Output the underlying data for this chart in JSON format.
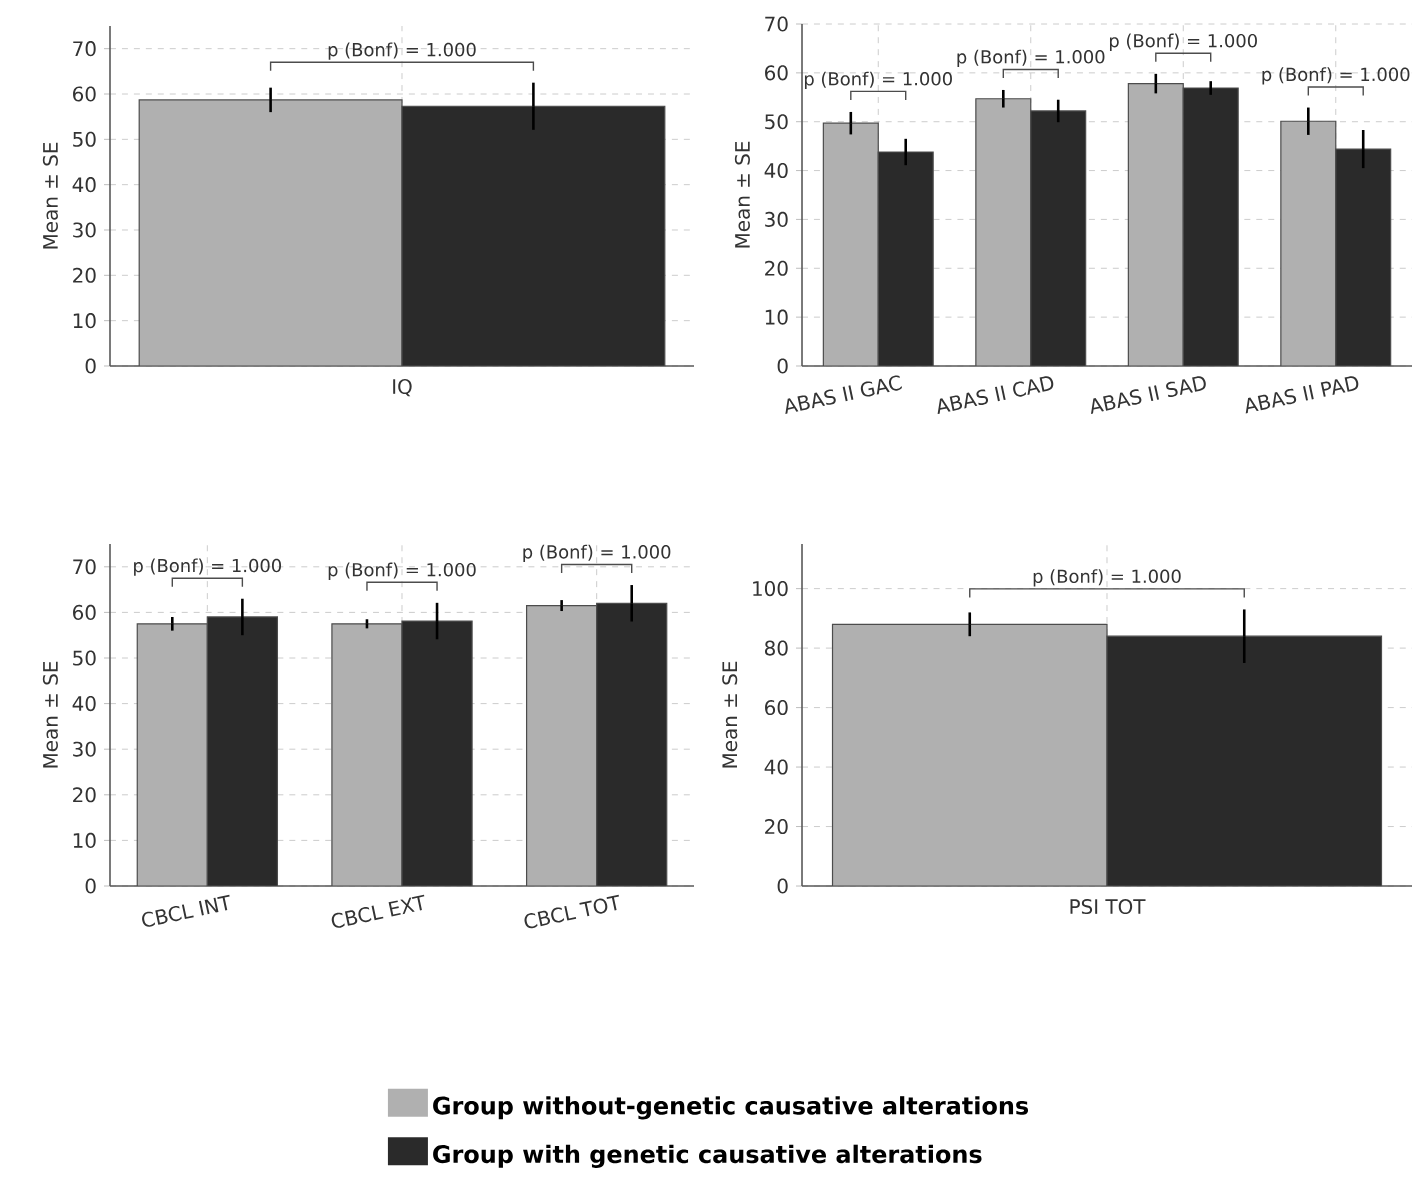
{
  "chart_data": [
    {
      "type": "bar",
      "categories": [
        "IQ"
      ],
      "ylabel": "Mean ± SE",
      "ylim": [
        0,
        75
      ],
      "yticks": [
        0,
        10,
        20,
        30,
        40,
        50,
        60,
        70
      ],
      "grid": true,
      "series": [
        {
          "color": "#b0b0b0",
          "values": [
            58.7
          ],
          "errors": [
            2.7
          ]
        },
        {
          "color": "#2a2a2a",
          "values": [
            57.3
          ],
          "errors": [
            5.2
          ]
        }
      ],
      "annotations": [
        "p (Bonf) = 1.000"
      ]
    },
    {
      "type": "bar",
      "categories": [
        "ABAS II GAC",
        "ABAS II CAD",
        "ABAS II SAD",
        "ABAS II PAD"
      ],
      "ylabel": "Mean ± SE",
      "ylim": [
        0,
        70
      ],
      "yticks": [
        0,
        10,
        20,
        30,
        40,
        50,
        60,
        70
      ],
      "grid": true,
      "series": [
        {
          "color": "#b0b0b0",
          "values": [
            49.7,
            54.7,
            57.8,
            50.1
          ],
          "errors": [
            2.3,
            1.8,
            2.0,
            2.8
          ]
        },
        {
          "color": "#2a2a2a",
          "values": [
            43.8,
            52.2,
            56.9,
            44.4
          ],
          "errors": [
            2.7,
            2.3,
            1.4,
            3.9
          ]
        }
      ],
      "annotations": [
        "p (Bonf) = 1.000",
        "p (Bonf) = 1.000",
        "p (Bonf) = 1.000",
        "p (Bonf) = 1.000"
      ]
    },
    {
      "type": "bar",
      "categories": [
        "CBCL INT",
        "CBCL EXT",
        "CBCL TOT"
      ],
      "ylabel": "Mean ± SE",
      "ylim": [
        0,
        75
      ],
      "yticks": [
        0,
        10,
        20,
        30,
        40,
        50,
        60,
        70
      ],
      "grid": true,
      "series": [
        {
          "color": "#b0b0b0",
          "values": [
            57.5,
            57.5,
            61.5
          ],
          "errors": [
            1.5,
            1.0,
            1.2
          ]
        },
        {
          "color": "#2a2a2a",
          "values": [
            59.0,
            58.1,
            62.0
          ],
          "errors": [
            4.0,
            4.0,
            4.0
          ]
        }
      ],
      "annotations": [
        "p (Bonf) = 1.000",
        "p (Bonf) = 1.000",
        "p (Bonf) = 1.000"
      ]
    },
    {
      "type": "bar",
      "categories": [
        "PSI TOT"
      ],
      "ylabel": "Mean ± SE",
      "ylim": [
        0,
        115
      ],
      "yticks": [
        0,
        20,
        40,
        60,
        80,
        100
      ],
      "grid": true,
      "legend": "bottom",
      "series": [
        {
          "name": "Group without-genetic causative alterations",
          "color": "#b0b0b0",
          "values": [
            88
          ],
          "errors": [
            4
          ]
        },
        {
          "name": "Group with genetic causative alterations",
          "color": "#2a2a2a",
          "values": [
            84
          ],
          "errors": [
            9
          ]
        }
      ],
      "annotations": [
        "p (Bonf) = 1.000"
      ]
    }
  ]
}
